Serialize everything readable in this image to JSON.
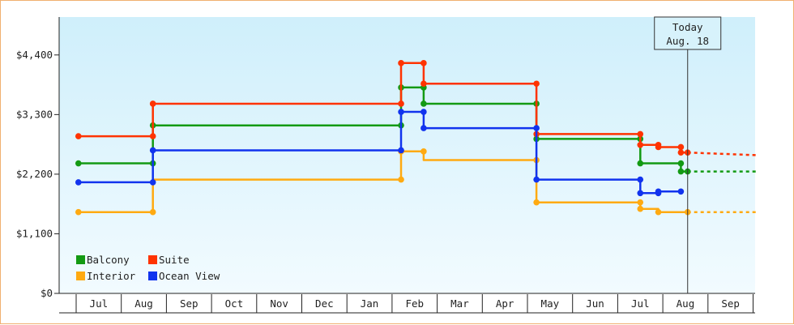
{
  "chart_data": {
    "type": "line",
    "step": true,
    "x_unit": "month index (0 = Jul of the first year shown; 12 = next Jul)",
    "y_ticks": [
      "$0",
      "$1,100",
      "$2,200",
      "$3,300",
      "$4,400"
    ],
    "y_tick_values": [
      0,
      1100,
      2200,
      3300,
      4400
    ],
    "ylim": [
      0,
      5100
    ],
    "months": [
      "Jul",
      "Aug",
      "Sep",
      "Oct",
      "Nov",
      "Dec",
      "Jan",
      "Feb",
      "Mar",
      "Apr",
      "May",
      "Jun",
      "Jul",
      "Aug",
      "Sep"
    ],
    "today": {
      "line1": "Today",
      "line2": "Aug. 18",
      "x": 13.05
    },
    "legend": [
      {
        "label": "Balcony",
        "color": "#139a13"
      },
      {
        "label": "Suite",
        "color": "#ff3300"
      },
      {
        "label": "Interior",
        "color": "#ffaa11"
      },
      {
        "label": "Ocean View",
        "color": "#1133ee"
      }
    ],
    "series": [
      {
        "name": "Balcony",
        "color": "#139a13",
        "points": [
          [
            -0.45,
            2400
          ],
          [
            1.2,
            2400
          ],
          [
            1.2,
            3100
          ],
          [
            6.7,
            3100
          ],
          [
            6.7,
            3800
          ],
          [
            7.2,
            3800
          ],
          [
            7.2,
            3500
          ],
          [
            9.7,
            3500
          ],
          [
            9.7,
            2850
          ],
          [
            12.0,
            2850
          ],
          [
            12.0,
            2400
          ],
          [
            12.9,
            2400
          ],
          [
            12.9,
            2250
          ],
          [
            13.05,
            2250
          ]
        ],
        "markers": [
          [
            -0.45,
            2400
          ],
          [
            1.2,
            2400
          ],
          [
            1.2,
            3100
          ],
          [
            6.7,
            3100
          ],
          [
            6.7,
            3800
          ],
          [
            7.2,
            3800
          ],
          [
            7.2,
            3500
          ],
          [
            9.7,
            3500
          ],
          [
            9.7,
            2850
          ],
          [
            12.0,
            2850
          ],
          [
            12.0,
            2400
          ],
          [
            12.9,
            2400
          ],
          [
            12.9,
            2250
          ],
          [
            13.05,
            2250
          ]
        ],
        "forecast": [
          [
            13.05,
            2250
          ],
          [
            14.6,
            2250
          ]
        ]
      },
      {
        "name": "Suite",
        "color": "#ff3300",
        "points": [
          [
            -0.45,
            2900
          ],
          [
            1.2,
            2900
          ],
          [
            1.2,
            3500
          ],
          [
            6.7,
            3500
          ],
          [
            6.7,
            4250
          ],
          [
            7.2,
            4250
          ],
          [
            7.2,
            3870
          ],
          [
            9.7,
            3870
          ],
          [
            9.7,
            2940
          ],
          [
            12.0,
            2940
          ],
          [
            12.0,
            2740
          ],
          [
            12.4,
            2740
          ],
          [
            12.4,
            2700
          ],
          [
            12.9,
            2700
          ],
          [
            12.9,
            2600
          ],
          [
            13.05,
            2600
          ]
        ],
        "markers": [
          [
            -0.45,
            2900
          ],
          [
            1.2,
            2900
          ],
          [
            1.2,
            3500
          ],
          [
            6.7,
            3500
          ],
          [
            6.7,
            4250
          ],
          [
            7.2,
            4250
          ],
          [
            7.2,
            3870
          ],
          [
            9.7,
            3870
          ],
          [
            9.7,
            2940
          ],
          [
            12.0,
            2940
          ],
          [
            12.0,
            2740
          ],
          [
            12.4,
            2740
          ],
          [
            12.4,
            2700
          ],
          [
            12.9,
            2700
          ],
          [
            12.9,
            2600
          ],
          [
            13.05,
            2600
          ]
        ],
        "forecast": [
          [
            13.05,
            2600
          ],
          [
            14.6,
            2550
          ]
        ]
      },
      {
        "name": "Interior",
        "color": "#ffaa11",
        "points": [
          [
            -0.45,
            1500
          ],
          [
            1.2,
            1500
          ],
          [
            1.2,
            2100
          ],
          [
            6.7,
            2100
          ],
          [
            6.7,
            2620
          ],
          [
            7.2,
            2620
          ],
          [
            7.2,
            2460
          ],
          [
            9.7,
            2460
          ],
          [
            9.7,
            1680
          ],
          [
            12.0,
            1680
          ],
          [
            12.0,
            1560
          ],
          [
            12.4,
            1560
          ],
          [
            12.4,
            1500
          ],
          [
            13.05,
            1500
          ]
        ],
        "markers": [
          [
            -0.45,
            1500
          ],
          [
            1.2,
            1500
          ],
          [
            6.7,
            2100
          ],
          [
            6.7,
            2620
          ],
          [
            7.2,
            2620
          ],
          [
            9.7,
            2460
          ],
          [
            9.7,
            1680
          ],
          [
            12.0,
            1680
          ],
          [
            12.0,
            1560
          ],
          [
            12.4,
            1500
          ],
          [
            13.05,
            1500
          ]
        ],
        "forecast": [
          [
            13.05,
            1500
          ],
          [
            14.6,
            1500
          ]
        ]
      },
      {
        "name": "Ocean View",
        "color": "#1133ee",
        "points": [
          [
            -0.45,
            2050
          ],
          [
            1.2,
            2050
          ],
          [
            1.2,
            2640
          ],
          [
            6.7,
            2640
          ],
          [
            6.7,
            3350
          ],
          [
            7.2,
            3350
          ],
          [
            7.2,
            3050
          ],
          [
            9.7,
            3050
          ],
          [
            9.7,
            2100
          ],
          [
            12.0,
            2100
          ],
          [
            12.0,
            1850
          ],
          [
            12.4,
            1850
          ],
          [
            12.4,
            1880
          ],
          [
            12.9,
            1880
          ]
        ],
        "markers": [
          [
            -0.45,
            2050
          ],
          [
            1.2,
            2050
          ],
          [
            1.2,
            2640
          ],
          [
            6.7,
            2640
          ],
          [
            6.7,
            3350
          ],
          [
            7.2,
            3350
          ],
          [
            7.2,
            3050
          ],
          [
            9.7,
            3050
          ],
          [
            9.7,
            2100
          ],
          [
            12.0,
            2100
          ],
          [
            12.0,
            1850
          ],
          [
            12.4,
            1850
          ],
          [
            12.4,
            1880
          ],
          [
            12.9,
            1880
          ]
        ],
        "forecast": []
      }
    ]
  }
}
